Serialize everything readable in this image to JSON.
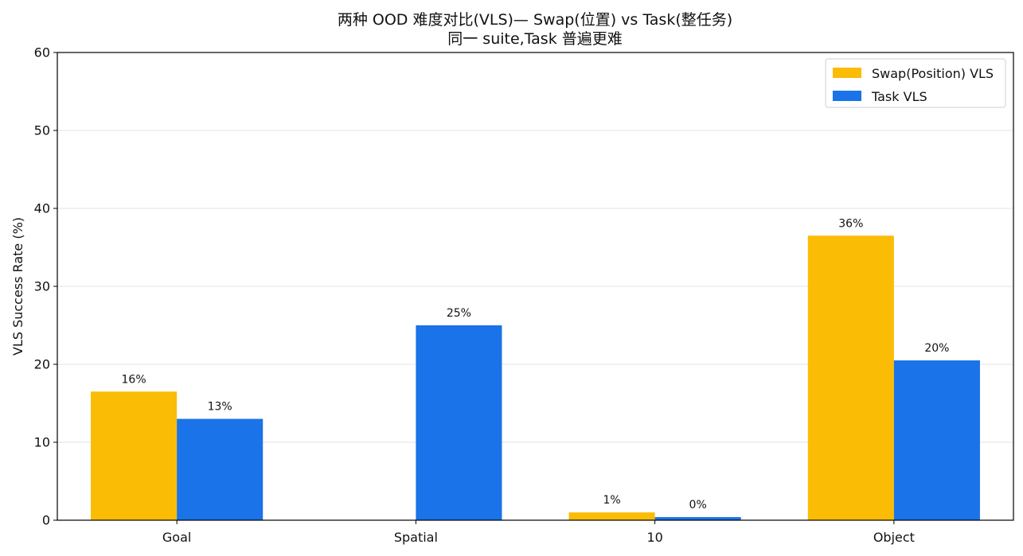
{
  "chart_data": {
    "type": "bar",
    "title_line1": "两种 OOD 难度对比(VLS)— Swap(位置) vs Task(整任务)",
    "title_line2": "同一 suite,Task 普遍更难",
    "xlabel": "",
    "ylabel": "VLS Success Rate (%)",
    "ylim": [
      0,
      60
    ],
    "yticks": [
      0,
      10,
      20,
      30,
      40,
      50,
      60
    ],
    "grid": true,
    "legend_position": "top-right",
    "categories": [
      "Goal",
      "Spatial",
      "10",
      "Object"
    ],
    "series": [
      {
        "name": "Swap(Position) VLS",
        "color": "#FBBC05",
        "values": [
          16.5,
          null,
          1.0,
          36.5
        ],
        "labels": [
          "16%",
          "",
          "1%",
          "36%"
        ]
      },
      {
        "name": "Task VLS",
        "color": "#1A73E8",
        "values": [
          13.0,
          25.0,
          0.4,
          20.5
        ],
        "labels": [
          "13%",
          "25%",
          "0%",
          "20%"
        ]
      }
    ]
  }
}
